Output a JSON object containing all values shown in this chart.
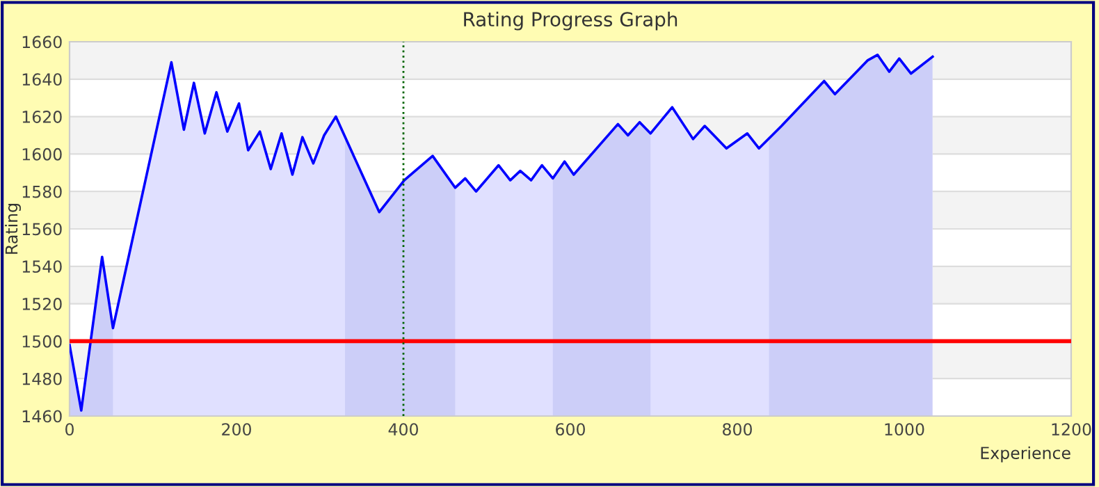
{
  "chart_data": {
    "type": "area",
    "title": "Rating Progress Graph",
    "xlabel": "Experience",
    "ylabel": "Rating",
    "x": [
      0,
      14,
      39,
      52,
      122,
      137,
      149,
      162,
      176,
      189,
      203,
      214,
      228,
      241,
      254,
      267,
      279,
      292,
      305,
      319,
      371,
      401,
      435,
      462,
      474,
      487,
      514,
      528,
      540,
      553,
      566,
      579,
      593,
      604,
      657,
      669,
      683,
      696,
      722,
      747,
      761,
      787,
      812,
      826,
      853,
      904,
      917,
      956,
      968,
      982,
      994,
      1008,
      1034
    ],
    "series": [
      {
        "color": "#0000ff",
        "values": [
          1498,
          1463,
          1545,
          1507,
          1649,
          1613,
          1638,
          1611,
          1633,
          1612,
          1627,
          1602,
          1612,
          1592,
          1611,
          1589,
          1609,
          1595,
          1610,
          1620,
          1569,
          1586,
          1599,
          1582,
          1587,
          1580,
          1594,
          1586,
          1591,
          1586,
          1594,
          1587,
          1596,
          1589,
          1616,
          1610,
          1617,
          1611,
          1625,
          1608,
          1615,
          1603,
          1611,
          1603,
          1615,
          1639,
          1632,
          1650,
          1653,
          1644,
          1651,
          1643,
          1652
        ]
      }
    ],
    "xlim": [
      0,
      1200
    ],
    "xticks": [
      0,
      200,
      400,
      600,
      800,
      1000,
      1200
    ],
    "ylim": [
      1460,
      1660
    ],
    "yticks": [
      1460,
      1480,
      1500,
      1520,
      1540,
      1560,
      1580,
      1600,
      1620,
      1640,
      1660
    ],
    "grid": "y",
    "ref_lines": [
      {
        "axis": "y",
        "value": 1500,
        "color": "#ff0000",
        "line_style": "solid"
      },
      {
        "axis": "x",
        "value": 400,
        "color": "#006400",
        "line_style": "dotted"
      }
    ],
    "bands": [
      {
        "axis": "x",
        "from": 0,
        "to": 52,
        "color": "#e9ebf8"
      },
      {
        "axis": "x",
        "from": 330,
        "to": 462,
        "color": "#e9ebf8"
      },
      {
        "axis": "x",
        "from": 579,
        "to": 696,
        "color": "#e9ebf8"
      },
      {
        "axis": "x",
        "from": 838,
        "to": 1034,
        "color": "#e9ebf8"
      }
    ]
  }
}
